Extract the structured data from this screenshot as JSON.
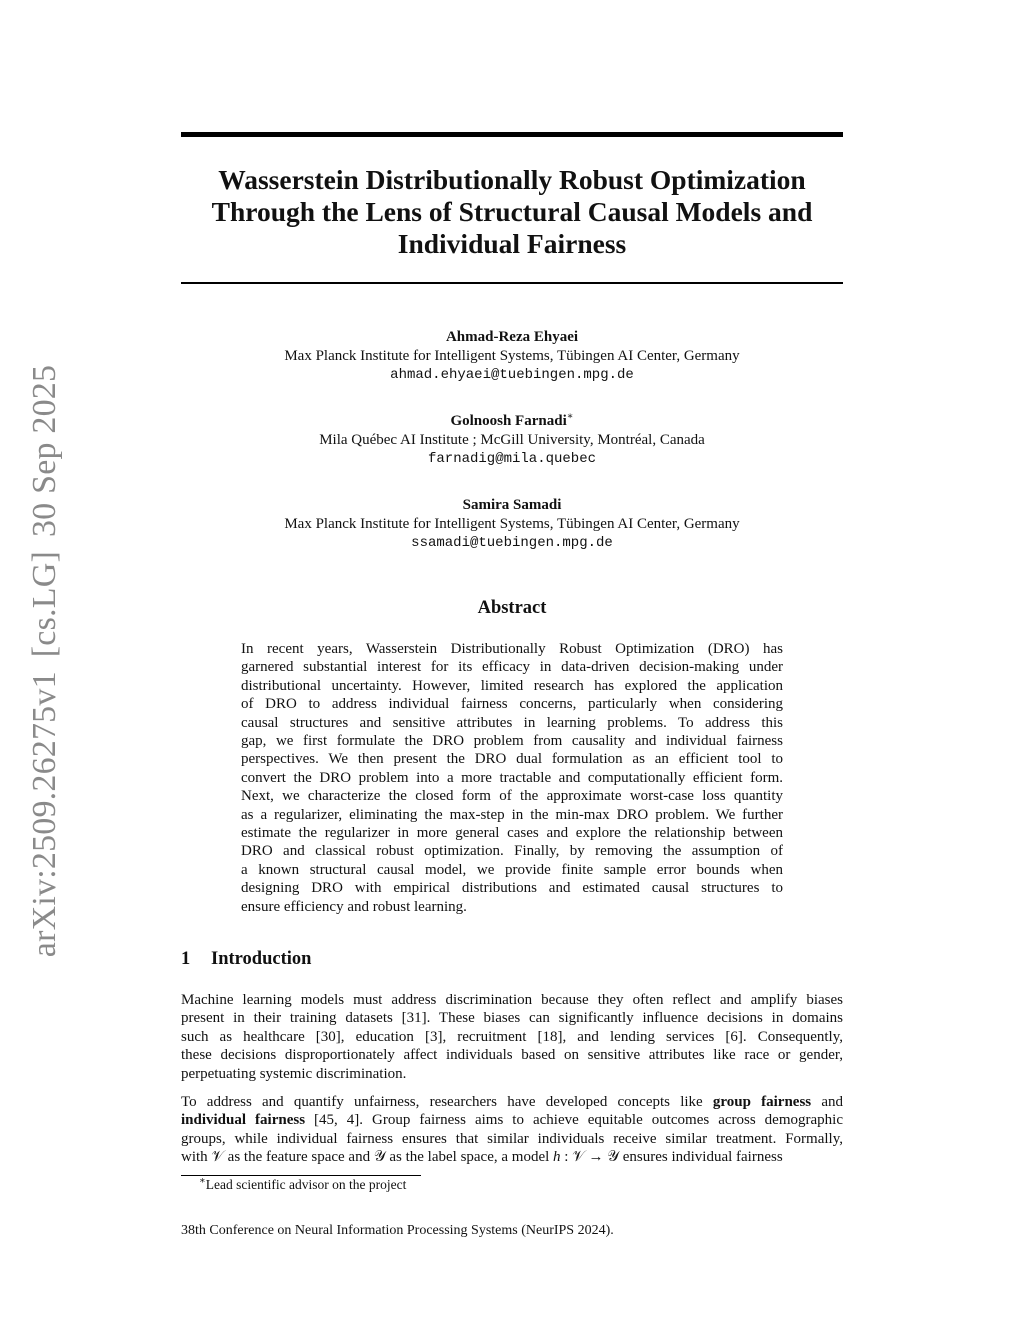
{
  "sidebar": {
    "id": "arXiv:2509.26275v1",
    "category": "[cs.LG]",
    "date": "30 Sep 2025"
  },
  "title": [
    "Wasserstein Distributionally Robust Optimization",
    "Through the Lens of Structural Causal Models and",
    "Individual Fairness"
  ],
  "authors": [
    {
      "name": "Ahmad-Reza Ehyaei",
      "mark": "",
      "affiliation": "Max Planck Institute for Intelligent Systems, Tübingen AI Center, Germany",
      "email": "ahmad.ehyaei@tuebingen.mpg.de"
    },
    {
      "name": "Golnoosh Farnadi",
      "mark": "∗",
      "affiliation": "Mila Québec AI Institute ; McGill University, Montréal, Canada",
      "email": "farnadig@mila.quebec"
    },
    {
      "name": "Samira Samadi",
      "mark": "",
      "affiliation": "Max Planck Institute for Intelligent Systems, Tübingen AI Center, Germany",
      "email": "ssamadi@tuebingen.mpg.de"
    }
  ],
  "abstract": {
    "heading": "Abstract",
    "lines": [
      "In recent years, Wasserstein Distributionally Robust Optimization (DRO) has",
      "garnered substantial interest for its efficacy in data-driven decision-making under",
      "distributional uncertainty. However, limited research has explored the application",
      "of DRO to address individual fairness concerns, particularly when considering",
      "causal structures and sensitive attributes in learning problems.  To address this",
      "gap, we first formulate the DRO problem from causality and individual fairness",
      "perspectives.  We then present the DRO dual formulation as an efficient tool to",
      "convert the DRO problem into a more tractable and computationally efficient form.",
      "Next, we characterize the closed form of the approximate worst-case loss quantity",
      "as a regularizer, eliminating the max-step in the min-max DRO problem. We further",
      "estimate the regularizer in more general cases and explore the relationship between",
      "DRO and classical robust optimization. Finally, by removing the assumption of",
      "a known structural causal model, we provide finite sample error bounds when",
      "designing DRO with empirical distributions and estimated causal structures to",
      "ensure efficiency and robust learning."
    ]
  },
  "section": {
    "number": "1",
    "title": "Introduction"
  },
  "intro": {
    "p1": [
      "Machine learning models must address discrimination because they often reflect and amplify biases",
      "present in their training datasets [31]. These biases can significantly influence decisions in domains",
      "such as healthcare [30], education [3], recruitment [18], and lending services [6].  Consequently,",
      "these decisions disproportionately affect individuals based on sensitive attributes like race or gender,",
      "perpetuating systemic discrimination."
    ],
    "p2": [
      [
        {
          "t": "To address and quantify unfairness, researchers have developed concepts like "
        },
        {
          "t": "group fairness",
          "b": true
        },
        {
          "t": " and"
        }
      ],
      [
        {
          "t": "individual fairness",
          "b": true
        },
        {
          "t": " [45, 4]. Group fairness aims to achieve equitable outcomes across demographic"
        }
      ],
      [
        {
          "t": "groups, while individual fairness ensures that similar individuals receive similar treatment. Formally,"
        }
      ],
      [
        {
          "t": "with 𝒱 as the feature space and 𝒴 as the label space, a model "
        },
        {
          "t": "h",
          "i": true
        },
        {
          "t": " : 𝒱 → 𝒴 ensures individual fairness"
        }
      ]
    ]
  },
  "footnote": {
    "mark": "∗",
    "text": "Lead scientific advisor on the project"
  },
  "footer": "38th Conference on Neural Information Processing Systems (NeurIPS 2024)."
}
